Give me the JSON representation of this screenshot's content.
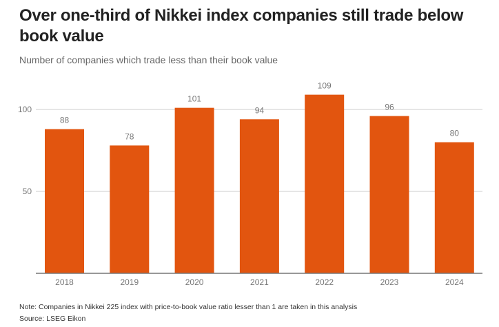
{
  "chart_data": {
    "type": "bar",
    "title": "Over one-third of Nikkei index companies still trade below book value",
    "subtitle": "Number of companies which trade less than their book value",
    "categories": [
      "2018",
      "2019",
      "2020",
      "2021",
      "2022",
      "2023",
      "2024"
    ],
    "values": [
      88,
      78,
      101,
      94,
      109,
      96,
      80
    ],
    "xlabel": "",
    "ylabel": "",
    "ylim": [
      0,
      115
    ],
    "yticks": [
      50,
      100
    ],
    "ytick_labels": [
      "50",
      "100"
    ],
    "grid": true,
    "legend": "none",
    "bar_color": "#e2550f",
    "note": "Note: Companies in Nikkei 225 index with price-to-book value ratio lesser than 1 are taken in this analysis",
    "source": "Source: LSEG Eikon"
  }
}
